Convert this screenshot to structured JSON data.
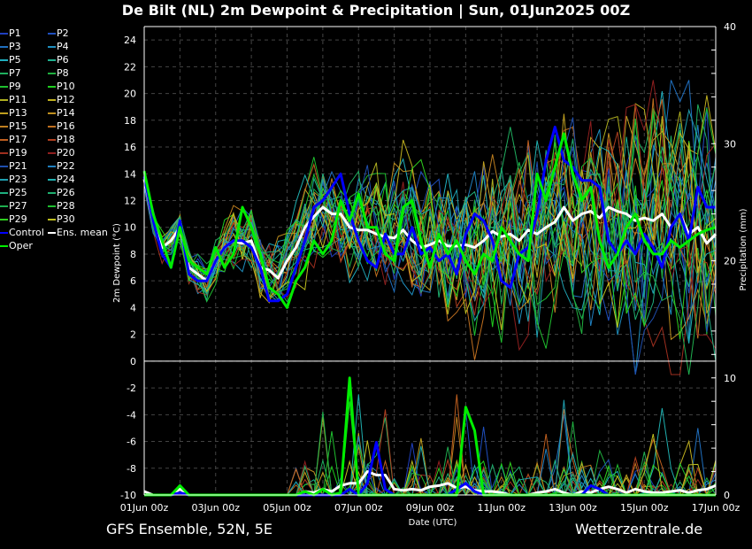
{
  "title": "De Bilt  (NL)  2m Dewpoint & Precipitation | Sun, 01Jun2025 00Z",
  "footer": {
    "left": "GFS Ensemble, 52N, 5E",
    "right": "Wetterzentrale.de"
  },
  "legend": [
    {
      "label": "P1",
      "color": "#1f3fbf"
    },
    {
      "label": "P2",
      "color": "#1f4fbf"
    },
    {
      "label": "P3",
      "color": "#1f6fbf"
    },
    {
      "label": "P4",
      "color": "#1f8fbf"
    },
    {
      "label": "P5",
      "color": "#1fafbf"
    },
    {
      "label": "P6",
      "color": "#1faf8f"
    },
    {
      "label": "P7",
      "color": "#1faf5f"
    },
    {
      "label": "P8",
      "color": "#1faf3f"
    },
    {
      "label": "P9",
      "color": "#1fbf2f"
    },
    {
      "label": "P10",
      "color": "#1fcf1f"
    },
    {
      "label": "P11",
      "color": "#afaf1f"
    },
    {
      "label": "P12",
      "color": "#bfaf1f"
    },
    {
      "label": "P13",
      "color": "#bf9f1f"
    },
    {
      "label": "P14",
      "color": "#bf8f1f"
    },
    {
      "label": "P15",
      "color": "#bf7f1f"
    },
    {
      "label": "P16",
      "color": "#bf6f1f"
    },
    {
      "label": "P17",
      "color": "#bf5f1f"
    },
    {
      "label": "P18",
      "color": "#af3f1f"
    },
    {
      "label": "P19",
      "color": "#9f2f1f"
    },
    {
      "label": "P20",
      "color": "#8f1f1f"
    },
    {
      "label": "P21",
      "color": "#1f4faf"
    },
    {
      "label": "P22",
      "color": "#1f7fbf"
    },
    {
      "label": "P23",
      "color": "#1f9faf"
    },
    {
      "label": "P24",
      "color": "#1fafaf"
    },
    {
      "label": "P25",
      "color": "#1faf7f"
    },
    {
      "label": "P26",
      "color": "#1faf6f"
    },
    {
      "label": "P27",
      "color": "#1faf4f"
    },
    {
      "label": "P28",
      "color": "#1fbf2f"
    },
    {
      "label": "P29",
      "color": "#2fcf1f"
    },
    {
      "label": "P30",
      "color": "#bfbf1f"
    },
    {
      "label": "Control",
      "color": "#0000ff"
    },
    {
      "label": "Ens. mean",
      "color": "#ffffff"
    },
    {
      "label": "Oper",
      "color": "#00ee00"
    }
  ],
  "chart_data": {
    "type": "line",
    "title": "De Bilt  (NL)  2m Dewpoint & Precipitation | Sun, 01Jun2025 00Z",
    "xlabel": "Date (UTC)",
    "ylabel": "2m Dewpoint (°C)",
    "y2label": "Precipitation (mm)",
    "x_tick_labels": [
      "01Jun 00z",
      "03Jun 00z",
      "05Jun 00z",
      "07Jun 00z",
      "09Jun 00z",
      "11Jun 00z",
      "13Jun 00z",
      "15Jun 00z",
      "17Jun 00z"
    ],
    "x_range_days": [
      0,
      16
    ],
    "x_step_hours": 6,
    "ylim": [
      -10,
      25
    ],
    "y_ticks": [
      24,
      22,
      20,
      18,
      16,
      14,
      12,
      10,
      8,
      6,
      4,
      2,
      0,
      -2,
      -4,
      -6,
      -8,
      -10
    ],
    "y2lim": [
      0,
      40
    ],
    "y2_ticks": [
      40,
      30,
      20,
      10,
      0
    ],
    "grid": true,
    "legend_position": "left-outside",
    "dewpoint": {
      "Oper": [
        14.2,
        11,
        9,
        7,
        10,
        7.5,
        7,
        6.5,
        8.5,
        7,
        8,
        11.5,
        10,
        8,
        5.5,
        5,
        4,
        6,
        7,
        9,
        8,
        9,
        12,
        10.5,
        12.5,
        10,
        10,
        8,
        7.5,
        11.5,
        12,
        9,
        7,
        9.5,
        8,
        9,
        7.5,
        6.5,
        8,
        7.5,
        10,
        9,
        8,
        7.5,
        14,
        12,
        14.5,
        17,
        14,
        12,
        13,
        9,
        7,
        8,
        10,
        11,
        9,
        8,
        8,
        9,
        8.5,
        9,
        9.5,
        9.8,
        10
      ],
      "Control": [
        13.8,
        10.5,
        8,
        7,
        10.5,
        6.5,
        6,
        6,
        7.5,
        8.5,
        9,
        9,
        8.5,
        7,
        4.5,
        4.5,
        5,
        7,
        9,
        11.5,
        12,
        13,
        14,
        11,
        9,
        7.5,
        7,
        9.5,
        8,
        8,
        10,
        8,
        8.5,
        7.5,
        8,
        6.5,
        9.5,
        11,
        10.5,
        9,
        6,
        5.5,
        8,
        8.5,
        11,
        15,
        17.5,
        15,
        14.5,
        13.5,
        13.5,
        13,
        9,
        8,
        9,
        8,
        9.5,
        8.5,
        7,
        10,
        11,
        9,
        13,
        11.5,
        11.5
      ],
      "Ens. mean": [
        13.6,
        10.5,
        8.5,
        9,
        10,
        7,
        6.5,
        6,
        7.5,
        8.5,
        9,
        8.8,
        9,
        7,
        6.8,
        6.2,
        7.5,
        8.5,
        10,
        10.8,
        11.5,
        11,
        11,
        10,
        9.8,
        9.8,
        9.5,
        9.3,
        9.2,
        9.8,
        9,
        8.5,
        8.7,
        9,
        8.6,
        8.6,
        8.7,
        8.5,
        9,
        9.7,
        9.3,
        9.5,
        9,
        9.8,
        9.5,
        10,
        10.4,
        11.5,
        10.5,
        11,
        11.2,
        10.7,
        11.5,
        11.2,
        11,
        10.5,
        10.7,
        10.5,
        11,
        10,
        11,
        9.5,
        10,
        8.8,
        9.5
      ]
    },
    "precipitation_mm": {
      "Oper": [
        0,
        0,
        0,
        0,
        0.8,
        0,
        0,
        0,
        0,
        0,
        0,
        0,
        0,
        0,
        0,
        0,
        0,
        0,
        0.3,
        0,
        0.5,
        0,
        0.2,
        10,
        0,
        0,
        0,
        0,
        0,
        0,
        0,
        0,
        0,
        0,
        0,
        0,
        7.5,
        5.5,
        0,
        0,
        0,
        0,
        0,
        0,
        0,
        0,
        0,
        0,
        0,
        0,
        0,
        0,
        0,
        0,
        0,
        0,
        0,
        0,
        0,
        0,
        0,
        0,
        0,
        0,
        0
      ],
      "Control": [
        0,
        0,
        0,
        0,
        0.2,
        0,
        0,
        0,
        0,
        0,
        0,
        0,
        0,
        0,
        0,
        0,
        0,
        0,
        0,
        0,
        0,
        0,
        0,
        0.5,
        0,
        1,
        4.5,
        0.5,
        0,
        0,
        0,
        0,
        0,
        0,
        0,
        0.5,
        1,
        0.3,
        0,
        0,
        0,
        0,
        0,
        0,
        0,
        0,
        0,
        0,
        0,
        0,
        0.8,
        0.5,
        0,
        0,
        0,
        0,
        0,
        0,
        0,
        0,
        0,
        0,
        0,
        0,
        0
      ],
      "Ens. mean": [
        0.3,
        0,
        0,
        0,
        0.5,
        0,
        0,
        0,
        0,
        0,
        0,
        0,
        0,
        0,
        0,
        0,
        0,
        0,
        0.3,
        0.2,
        0.5,
        0.3,
        0.8,
        1,
        1,
        2,
        1.7,
        1.7,
        0.5,
        0.4,
        0.5,
        0.4,
        0.7,
        0.8,
        1,
        0.6,
        0.7,
        0.4,
        0.3,
        0.3,
        0.2,
        0,
        0,
        0,
        0.2,
        0.3,
        0.5,
        0.2,
        0,
        0.3,
        0.2,
        0.5,
        0.7,
        0.5,
        0.2,
        0.5,
        0.3,
        0.2,
        0.2,
        0.3,
        0.4,
        0.2,
        0.4,
        0.5,
        0.8
      ]
    }
  }
}
